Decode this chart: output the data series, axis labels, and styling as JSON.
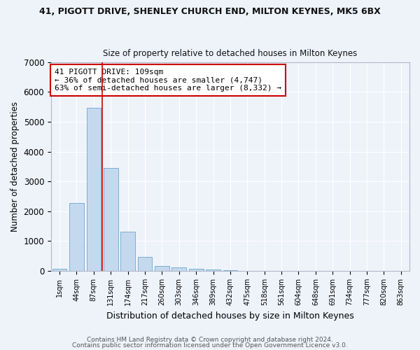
{
  "title1": "41, PIGOTT DRIVE, SHENLEY CHURCH END, MILTON KEYNES, MK5 6BX",
  "title2": "Size of property relative to detached houses in Milton Keynes",
  "xlabel": "Distribution of detached houses by size in Milton Keynes",
  "ylabel": "Number of detached properties",
  "footer1": "Contains HM Land Registry data © Crown copyright and database right 2024.",
  "footer2": "Contains public sector information licensed under the Open Government Licence v3.0.",
  "bar_labels": [
    "1sqm",
    "44sqm",
    "87sqm",
    "131sqm",
    "174sqm",
    "217sqm",
    "260sqm",
    "303sqm",
    "346sqm",
    "389sqm",
    "432sqm",
    "475sqm",
    "518sqm",
    "561sqm",
    "604sqm",
    "648sqm",
    "691sqm",
    "734sqm",
    "777sqm",
    "820sqm",
    "863sqm"
  ],
  "bar_values": [
    80,
    2270,
    5470,
    3450,
    1310,
    470,
    165,
    110,
    75,
    40,
    15,
    8,
    4,
    2,
    1,
    1,
    0,
    0,
    0,
    0,
    0
  ],
  "bar_color": "#c5d9ee",
  "bar_edge_color": "#7aafd4",
  "bg_color": "#eef3fa",
  "grid_color": "#ffffff",
  "property_label": "41 PIGOTT DRIVE: 109sqm",
  "pct_smaller": 36,
  "n_smaller": 4747,
  "pct_semi_larger": 63,
  "n_semi_larger": 8332,
  "vline_x": 2.5,
  "annotation_box_color": "#ffffff",
  "annotation_border_color": "#cc0000",
  "ylim": [
    0,
    7000
  ],
  "yticks": [
    0,
    1000,
    2000,
    3000,
    4000,
    5000,
    6000,
    7000
  ]
}
